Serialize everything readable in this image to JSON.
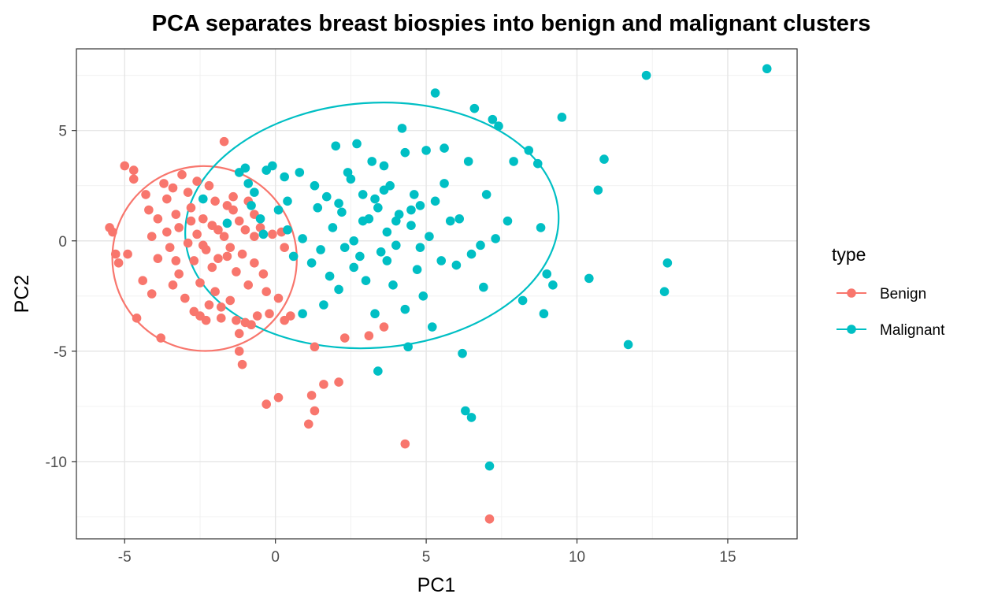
{
  "chart_data": {
    "type": "scatter",
    "title": "PCA separates breast biospies into benign and malignant clusters",
    "xlabel": "PC1",
    "ylabel": "PC2",
    "xlim": [
      -6.6,
      17.3
    ],
    "ylim": [
      -13.5,
      8.7
    ],
    "x_ticks": [
      -5,
      0,
      5,
      10,
      15
    ],
    "y_ticks": [
      -10,
      -5,
      0,
      5
    ],
    "x_tick_labels": [
      "-5",
      "0",
      "5",
      "10",
      "15"
    ],
    "y_tick_labels": [
      "-10",
      "-5",
      "0",
      "5"
    ],
    "grid": true,
    "legend": {
      "title": "type",
      "position": "right"
    },
    "series": [
      {
        "name": "Benign",
        "color": "#F8766D",
        "ellipse": {
          "cx": -2.35,
          "cy": -0.8,
          "rx": 3.05,
          "ry": 4.2,
          "angle_deg": -38
        },
        "points": [
          [
            -5.5,
            0.6
          ],
          [
            -5.4,
            0.4
          ],
          [
            -5.3,
            -0.6
          ],
          [
            -5.2,
            -1.0
          ],
          [
            -4.9,
            -0.6
          ],
          [
            -5.0,
            3.4
          ],
          [
            -4.7,
            3.2
          ],
          [
            -4.7,
            2.8
          ],
          [
            -4.6,
            -3.5
          ],
          [
            -4.4,
            -1.8
          ],
          [
            -4.3,
            2.1
          ],
          [
            -4.2,
            1.4
          ],
          [
            -4.1,
            0.2
          ],
          [
            -4.1,
            -2.4
          ],
          [
            -3.9,
            -0.8
          ],
          [
            -3.8,
            -4.4
          ],
          [
            -3.7,
            2.6
          ],
          [
            -3.6,
            1.9
          ],
          [
            -3.5,
            -0.3
          ],
          [
            -3.4,
            2.4
          ],
          [
            -3.3,
            1.2
          ],
          [
            -3.2,
            0.6
          ],
          [
            -3.2,
            -1.5
          ],
          [
            -3.1,
            3.0
          ],
          [
            -3.0,
            -2.6
          ],
          [
            -2.9,
            2.2
          ],
          [
            -2.8,
            1.5
          ],
          [
            -2.7,
            -0.9
          ],
          [
            -2.7,
            -3.2
          ],
          [
            -2.6,
            2.7
          ],
          [
            -2.6,
            0.3
          ],
          [
            -2.5,
            -1.9
          ],
          [
            -2.5,
            -3.4
          ],
          [
            -2.4,
            1.0
          ],
          [
            -2.3,
            -0.4
          ],
          [
            -2.3,
            -3.6
          ],
          [
            -2.2,
            2.5
          ],
          [
            -2.1,
            -1.2
          ],
          [
            -2.0,
            1.8
          ],
          [
            -2.0,
            -2.3
          ],
          [
            -1.9,
            0.5
          ],
          [
            -1.8,
            -3.0
          ],
          [
            -1.8,
            -3.5
          ],
          [
            -1.7,
            4.5
          ],
          [
            -1.6,
            1.6
          ],
          [
            -1.6,
            -0.7
          ],
          [
            -1.5,
            -2.7
          ],
          [
            -1.4,
            2.0
          ],
          [
            -1.3,
            -1.4
          ],
          [
            -1.3,
            -3.6
          ],
          [
            -1.2,
            0.9
          ],
          [
            -1.2,
            -4.2
          ],
          [
            -1.2,
            -5.0
          ],
          [
            -1.1,
            -5.6
          ],
          [
            -1.0,
            -3.7
          ],
          [
            -0.9,
            -2.0
          ],
          [
            -0.8,
            -3.8
          ],
          [
            -0.7,
            1.2
          ],
          [
            -0.7,
            0.2
          ],
          [
            -0.7,
            -1.0
          ],
          [
            -0.6,
            -3.4
          ],
          [
            -0.5,
            0.6
          ],
          [
            -0.4,
            -1.5
          ],
          [
            -0.3,
            -2.3
          ],
          [
            -0.2,
            -3.3
          ],
          [
            -0.1,
            0.3
          ],
          [
            0.1,
            -2.6
          ],
          [
            0.2,
            0.4
          ],
          [
            0.3,
            -0.3
          ],
          [
            0.3,
            -3.6
          ],
          [
            0.5,
            -3.4
          ],
          [
            -0.3,
            -7.4
          ],
          [
            0.1,
            -7.1
          ],
          [
            1.1,
            -8.3
          ],
          [
            1.2,
            -7.0
          ],
          [
            1.3,
            -7.7
          ],
          [
            1.6,
            -6.5
          ],
          [
            2.1,
            -6.4
          ],
          [
            1.3,
            -4.8
          ],
          [
            2.3,
            -4.4
          ],
          [
            3.1,
            -4.3
          ],
          [
            3.6,
            -3.9
          ],
          [
            4.3,
            -9.2
          ],
          [
            7.1,
            -12.6
          ],
          [
            -3.9,
            1.0
          ],
          [
            -3.6,
            0.4
          ],
          [
            -3.3,
            -0.9
          ],
          [
            -2.9,
            -0.1
          ],
          [
            -2.8,
            0.9
          ],
          [
            -2.4,
            -0.2
          ],
          [
            -2.1,
            0.7
          ],
          [
            -1.9,
            -0.8
          ],
          [
            -1.7,
            0.2
          ],
          [
            -1.5,
            -0.3
          ],
          [
            -1.4,
            1.4
          ],
          [
            -1.1,
            -0.6
          ],
          [
            -1.0,
            0.5
          ],
          [
            -0.9,
            1.8
          ],
          [
            -3.4,
            -2.0
          ],
          [
            -2.2,
            -2.9
          ]
        ]
      },
      {
        "name": "Malignant",
        "color": "#00BFC4",
        "ellipse": {
          "cx": 3.2,
          "cy": 0.7,
          "rx": 6.2,
          "ry": 5.55,
          "angle_deg": -4
        },
        "points": [
          [
            -2.4,
            1.9
          ],
          [
            -1.6,
            0.8
          ],
          [
            -1.2,
            3.1
          ],
          [
            -1.0,
            3.3
          ],
          [
            -0.9,
            2.6
          ],
          [
            -0.8,
            1.6
          ],
          [
            -0.7,
            2.2
          ],
          [
            -0.5,
            1.0
          ],
          [
            -0.3,
            3.2
          ],
          [
            -0.1,
            3.4
          ],
          [
            0.1,
            1.4
          ],
          [
            0.3,
            2.9
          ],
          [
            0.4,
            0.5
          ],
          [
            0.6,
            -0.7
          ],
          [
            0.8,
            3.1
          ],
          [
            0.9,
            0.1
          ],
          [
            1.2,
            -1.0
          ],
          [
            1.4,
            1.5
          ],
          [
            1.5,
            -0.4
          ],
          [
            1.7,
            2.0
          ],
          [
            1.8,
            -1.6
          ],
          [
            1.9,
            0.6
          ],
          [
            2.0,
            4.3
          ],
          [
            2.1,
            -2.2
          ],
          [
            2.2,
            1.3
          ],
          [
            2.3,
            -0.3
          ],
          [
            2.4,
            3.1
          ],
          [
            2.5,
            2.8
          ],
          [
            2.6,
            0.0
          ],
          [
            2.7,
            4.4
          ],
          [
            2.8,
            -0.7
          ],
          [
            2.9,
            2.1
          ],
          [
            3.0,
            -1.8
          ],
          [
            3.1,
            1.0
          ],
          [
            3.2,
            3.6
          ],
          [
            3.3,
            -3.3
          ],
          [
            3.4,
            1.5
          ],
          [
            3.5,
            -0.5
          ],
          [
            3.6,
            3.4
          ],
          [
            3.7,
            0.4
          ],
          [
            3.8,
            2.5
          ],
          [
            3.9,
            -2.0
          ],
          [
            4.0,
            -0.2
          ],
          [
            4.1,
            1.2
          ],
          [
            4.2,
            5.1
          ],
          [
            4.3,
            4.0
          ],
          [
            4.4,
            -4.8
          ],
          [
            4.5,
            0.7
          ],
          [
            4.6,
            2.1
          ],
          [
            4.7,
            -1.3
          ],
          [
            4.8,
            1.6
          ],
          [
            4.9,
            -2.5
          ],
          [
            5.0,
            4.1
          ],
          [
            5.1,
            0.2
          ],
          [
            5.2,
            -3.9
          ],
          [
            5.3,
            6.7
          ],
          [
            5.5,
            -0.9
          ],
          [
            5.6,
            4.2
          ],
          [
            5.8,
            0.9
          ],
          [
            6.0,
            -1.1
          ],
          [
            6.2,
            -5.1
          ],
          [
            6.3,
            -7.7
          ],
          [
            6.5,
            -8.0
          ],
          [
            6.4,
            3.6
          ],
          [
            6.6,
            6.0
          ],
          [
            6.8,
            -0.2
          ],
          [
            7.0,
            2.1
          ],
          [
            7.1,
            -10.2
          ],
          [
            7.2,
            5.5
          ],
          [
            7.3,
            0.1
          ],
          [
            7.4,
            5.2
          ],
          [
            7.7,
            0.9
          ],
          [
            7.9,
            3.6
          ],
          [
            8.2,
            -2.7
          ],
          [
            8.4,
            4.1
          ],
          [
            8.7,
            3.5
          ],
          [
            8.8,
            0.6
          ],
          [
            8.9,
            -3.3
          ],
          [
            9.0,
            -1.5
          ],
          [
            9.2,
            -2.0
          ],
          [
            9.5,
            5.6
          ],
          [
            10.4,
            -1.7
          ],
          [
            10.7,
            2.3
          ],
          [
            10.9,
            3.7
          ],
          [
            11.7,
            -4.7
          ],
          [
            12.3,
            7.5
          ],
          [
            12.9,
            -2.3
          ],
          [
            13.0,
            -1.0
          ],
          [
            16.3,
            7.8
          ],
          [
            3.4,
            -5.9
          ],
          [
            0.9,
            -3.3
          ],
          [
            1.6,
            -2.9
          ],
          [
            2.6,
            -1.2
          ],
          [
            3.3,
            1.9
          ],
          [
            3.6,
            2.3
          ],
          [
            4.0,
            0.9
          ],
          [
            4.3,
            -3.1
          ],
          [
            4.5,
            1.4
          ],
          [
            5.6,
            2.6
          ],
          [
            6.9,
            -2.1
          ],
          [
            1.3,
            2.5
          ],
          [
            2.1,
            1.7
          ],
          [
            2.9,
            0.9
          ],
          [
            3.7,
            -0.9
          ],
          [
            4.8,
            -0.3
          ],
          [
            5.3,
            1.8
          ],
          [
            6.1,
            1.0
          ],
          [
            6.5,
            -0.6
          ],
          [
            -0.4,
            0.3
          ],
          [
            0.4,
            1.8
          ]
        ]
      }
    ]
  }
}
